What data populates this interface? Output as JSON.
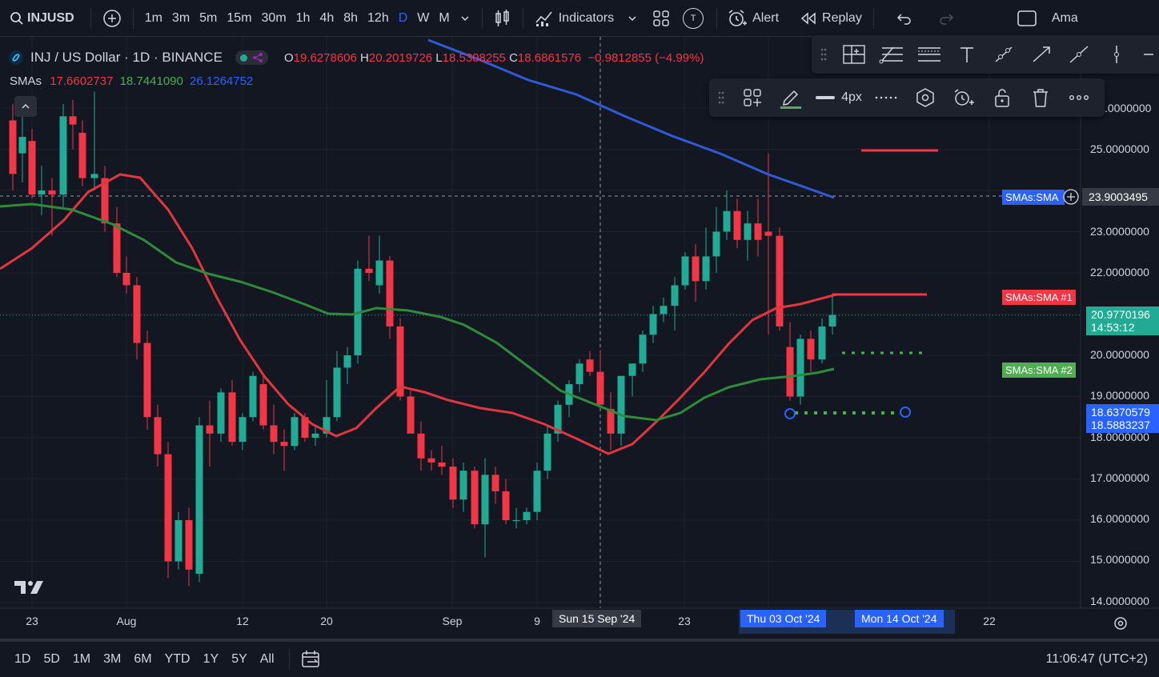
{
  "topbar": {
    "symbol": "INJUSD",
    "timeframes": [
      "1m",
      "3m",
      "5m",
      "15m",
      "30m",
      "1h",
      "4h",
      "8h",
      "12h",
      "D",
      "W",
      "M"
    ],
    "active_timeframe": "D",
    "indicators_label": "Indicators",
    "template_badge": "T",
    "alert_label": "Alert",
    "replay_label": "Replay",
    "right_truncated": "Ama"
  },
  "legend": {
    "title": "INJ / US Dollar · 1D · BINANCE",
    "o_label": "O",
    "o_value": "19.6278606",
    "h_label": "H",
    "h_value": "20.2019726",
    "l_label": "L",
    "l_value": "18.5308255",
    "c_label": "C",
    "c_value": "18.6861576",
    "change": "−0.9812855 (−4.99%)",
    "sma_label": "SMAs",
    "sma1": "17.6602737",
    "sma2": "18.7441090",
    "sma3": "26.1264752"
  },
  "drawing_toolbar": {
    "width_label": "4px"
  },
  "price_axis": [
    "25.0000000",
    "23.0000000",
    "22.0000000",
    "20.0000000",
    "19.0000000",
    "18.0000000",
    "17.0000000",
    "16.0000000",
    "15.0000000",
    "14.0000000"
  ],
  "price_axis_top": ".0000000",
  "crosshair_price": "23.9003495",
  "last_price": "20.9770196",
  "countdown": "14:53:12",
  "label_a": "18.6370579",
  "label_b": "18.5883237",
  "sma_tags": {
    "blue": "SMAs:SMA",
    "red": "SMAs:SMA #1",
    "green": "SMAs:SMA #2"
  },
  "time_axis": [
    "23",
    "Aug",
    "12",
    "20",
    "Sep",
    "9",
    "23",
    "22"
  ],
  "time_highlight": {
    "crosshair": "Sun 15 Sep '24",
    "start": "Thu 03 Oct '24",
    "end": "Mon 14 Oct '24"
  },
  "bottom": {
    "ranges": [
      "1D",
      "5D",
      "1M",
      "3M",
      "6M",
      "YTD",
      "1Y",
      "5Y",
      "All"
    ],
    "clock": "11:06:47 (UTC+2)"
  },
  "colors": {
    "up": "#22ab94",
    "down": "#f23645",
    "sma_red": "#e0373f",
    "sma_green": "#2e8b3a",
    "sma_blue": "#2f5bd6",
    "accent": "#2962ff"
  }
}
